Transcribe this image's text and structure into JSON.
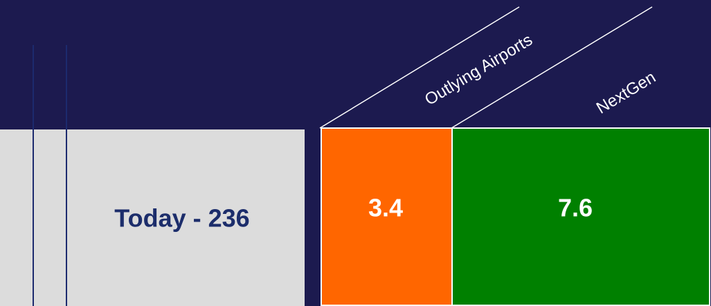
{
  "row_label": "Today - 236",
  "columns": [
    {
      "header": "Outlying Airports",
      "value": 3.4
    },
    {
      "header": "NextGen",
      "value": 7.6
    }
  ]
}
